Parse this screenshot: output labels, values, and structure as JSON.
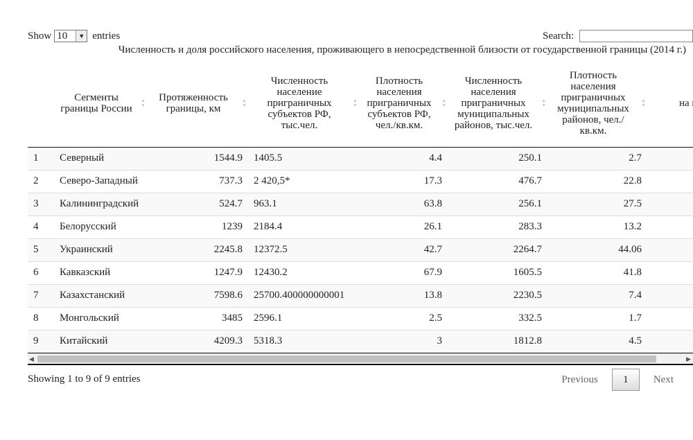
{
  "length_menu": {
    "show": "Show",
    "value": "10",
    "entries": "entries"
  },
  "search": {
    "label": "Search:",
    "value": ""
  },
  "caption": "Численность и доля российского населения, проживающего в непосредственной близости от государственной границы (2014 г.)",
  "columns": [
    "",
    "Сегменты границы России",
    "Протяженность границы, км",
    "Численность население приграничных субъектов РФ, тыс.чел.",
    "Плотность населения приграничных субъектов РФ, чел./кв.км.",
    "Численность населения приграничных муниципальных районов, тыс.чел.",
    "Плотность населения приграничных муниципальных районов, чел./кв.км.",
    "на пригра ра на субъе"
  ],
  "rows": [
    [
      "1",
      "Северный",
      "1544.9",
      "1405.5",
      "4.4",
      "250.1",
      "2.7",
      ""
    ],
    [
      "2",
      "Северо-Западный",
      "737.3",
      "2 420,5*",
      "17.3",
      "476.7",
      "22.8",
      ""
    ],
    [
      "3",
      "Калининградский",
      "524.7",
      "963.1",
      "63.8",
      "256.1",
      "27.5",
      ""
    ],
    [
      "4",
      "Белорусский",
      "1239",
      "2184.4",
      "26.1",
      "283.3",
      "13.2",
      ""
    ],
    [
      "5",
      "Украинский",
      "2245.8",
      "12372.5",
      "42.7",
      "2264.7",
      "44.06",
      ""
    ],
    [
      "6",
      "Кавказский",
      "1247.9",
      "12430.2",
      "67.9",
      "1605.5",
      "41.8",
      ""
    ],
    [
      "7",
      "Казахстанский",
      "7598.6",
      "25700.400000000001",
      "13.8",
      "2230.5",
      "7.4",
      ""
    ],
    [
      "8",
      "Монгольский",
      "3485",
      "2596.1",
      "2.5",
      "332.5",
      "1.7",
      ""
    ],
    [
      "9",
      "Китайский",
      "4209.3",
      "5318.3",
      "3",
      "1812.8",
      "4.5",
      ""
    ]
  ],
  "info": "Showing 1 to 9 of 9 entries",
  "pagination": {
    "previous": "Previous",
    "current": "1",
    "next": "Next"
  }
}
